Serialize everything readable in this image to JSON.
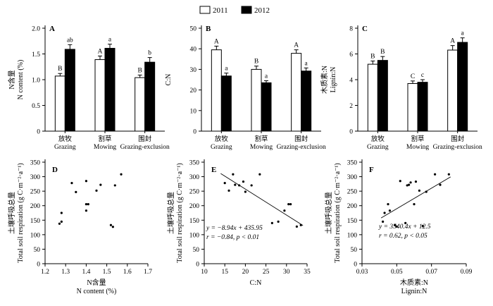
{
  "legend": {
    "entries": [
      {
        "label": "2011",
        "color": "#ffffff"
      },
      {
        "label": "2012",
        "color": "#000000"
      }
    ]
  },
  "chart_data": [
    {
      "id": "A",
      "type": "bar",
      "panel_label": "A",
      "ylabel": [
        "N含量",
        "N content (%)"
      ],
      "ylim": [
        0,
        2.0
      ],
      "yticks": [
        "0",
        "0.5",
        "1.0",
        "1.5",
        "2.0"
      ],
      "categories": [
        [
          "放牧",
          "Grazing"
        ],
        [
          "割草",
          "Mowing"
        ],
        [
          "围封",
          "Grazing-exclusion"
        ]
      ],
      "series": [
        {
          "name": "2011",
          "color": "#ffffff",
          "values": [
            1.07,
            1.39,
            1.04
          ],
          "errors": [
            0.05,
            0.07,
            0.05
          ],
          "letters": [
            "B",
            "A",
            "B"
          ]
        },
        {
          "name": "2012",
          "color": "#000000",
          "values": [
            1.59,
            1.61,
            1.34
          ],
          "errors": [
            0.09,
            0.08,
            0.09
          ],
          "letters": [
            "ab",
            "a",
            "b"
          ]
        }
      ]
    },
    {
      "id": "B",
      "type": "bar",
      "panel_label": "B",
      "ylabel": [
        "C:N"
      ],
      "ylim": [
        0,
        50
      ],
      "yticks": [
        "0",
        "10",
        "20",
        "30",
        "40",
        "50"
      ],
      "categories": [
        [
          "放牧",
          "Grazing"
        ],
        [
          "割草",
          "Mowing"
        ],
        [
          "围封",
          "Grazing-exclusion"
        ]
      ],
      "series": [
        {
          "name": "2011",
          "color": "#ffffff",
          "values": [
            39.5,
            30.0,
            37.8
          ],
          "errors": [
            1.8,
            1.6,
            1.7
          ],
          "letters": [
            "A",
            "B",
            "A"
          ]
        },
        {
          "name": "2012",
          "color": "#000000",
          "values": [
            26.8,
            23.5,
            29.2
          ],
          "errors": [
            1.4,
            1.0,
            1.5
          ],
          "letters": [
            "a",
            "a",
            "a"
          ]
        }
      ]
    },
    {
      "id": "C",
      "type": "bar",
      "panel_label": "C",
      "ylabel": [
        "木质素:N",
        "Lignin:N"
      ],
      "ylim": [
        0,
        8
      ],
      "yticks": [
        "0",
        "2",
        "4",
        "6",
        "8"
      ],
      "categories": [
        [
          "放牧",
          "Grazing"
        ],
        [
          "割草",
          "Mowing"
        ],
        [
          "围封",
          "Grazing-exclusion"
        ]
      ],
      "series": [
        {
          "name": "2011",
          "color": "#ffffff",
          "values": [
            5.2,
            3.7,
            6.3
          ],
          "errors": [
            0.25,
            0.2,
            0.35
          ],
          "letters": [
            "B",
            "C",
            "A"
          ]
        },
        {
          "name": "2012",
          "color": "#000000",
          "values": [
            5.5,
            3.8,
            6.9
          ],
          "errors": [
            0.3,
            0.2,
            0.35
          ],
          "letters": [
            "B",
            "c",
            "a"
          ]
        }
      ]
    },
    {
      "id": "D",
      "type": "scatter",
      "panel_label": "D",
      "xlabel": [
        "N含量",
        "N content (%)"
      ],
      "ylabel": [
        "土壤呼吸总量",
        "Total soil respiration (g C·m⁻²·a⁻¹)"
      ],
      "xlim": [
        1.2,
        1.7
      ],
      "ylim": [
        0,
        350
      ],
      "xticks": [
        "1.2",
        "1.3",
        "1.4",
        "1.5",
        "1.6",
        "1.7"
      ],
      "yticks": [
        "0",
        "50",
        "100",
        "150",
        "200",
        "250",
        "300",
        "350"
      ],
      "x": [
        1.27,
        1.28,
        1.28,
        1.33,
        1.35,
        1.4,
        1.4,
        1.41,
        1.4,
        1.45,
        1.47,
        1.52,
        1.53,
        1.54,
        1.57
      ],
      "y": [
        138,
        145,
        175,
        278,
        247,
        285,
        205,
        205,
        183,
        252,
        272,
        133,
        127,
        270,
        308
      ]
    },
    {
      "id": "E",
      "type": "scatter",
      "panel_label": "E",
      "xlabel": [
        "C:N"
      ],
      "ylabel": [
        "土壤呼吸总量",
        "Total soil respiration (g C·m⁻²·a⁻¹)"
      ],
      "xlim": [
        10,
        35
      ],
      "ylim": [
        0,
        350
      ],
      "xticks": [
        "10",
        "15",
        "20",
        "25",
        "30",
        "35"
      ],
      "yticks": [
        "0",
        "50",
        "100",
        "150",
        "200",
        "250",
        "300",
        "350"
      ],
      "x": [
        15.0,
        16.0,
        17.0,
        17.5,
        18.5,
        19.5,
        20.0,
        21.5,
        23.5,
        26.5,
        28.0,
        29.5,
        30.5,
        31.0,
        32.5,
        33.5
      ],
      "y": [
        278,
        252,
        308,
        272,
        270,
        283,
        248,
        270,
        308,
        140,
        145,
        183,
        205,
        205,
        128,
        133
      ],
      "fit": {
        "slope": -8.94,
        "intercept": 435.95,
        "x_range": [
          14,
          34
        ]
      },
      "annotation": [
        "y = −8.94x + 435.95",
        "r = −0.84, p < 0.01"
      ]
    },
    {
      "id": "F",
      "type": "scatter",
      "panel_label": "F",
      "xlabel": [
        "木质素:N",
        "Lignin:N"
      ],
      "ylabel": [
        "土壤呼吸总量",
        "Total soil respiration (g C·m⁻²·a⁻¹)"
      ],
      "xlim": [
        0.03,
        0.09
      ],
      "ylim": [
        0,
        350
      ],
      "xticks": [
        "0.03",
        "0.05",
        "0.07",
        "0.09"
      ],
      "yticks": [
        "0",
        "50",
        "100",
        "150",
        "200",
        "250",
        "300",
        "350"
      ],
      "x": [
        0.042,
        0.043,
        0.045,
        0.046,
        0.049,
        0.05,
        0.052,
        0.055,
        0.056,
        0.057,
        0.058,
        0.06,
        0.061,
        0.063,
        0.065,
        0.067,
        0.072,
        0.075,
        0.08
      ],
      "y": [
        145,
        175,
        205,
        183,
        133,
        128,
        285,
        140,
        270,
        272,
        280,
        205,
        283,
        252,
        130,
        248,
        308,
        272,
        308
      ],
      "fit": {
        "slope": 3540.4,
        "intercept": 12.5,
        "x_range": [
          0.041,
          0.081
        ]
      },
      "annotation": [
        "y = 3540.4x + 12.5",
        "r = 0.62, p < 0.05"
      ]
    }
  ]
}
